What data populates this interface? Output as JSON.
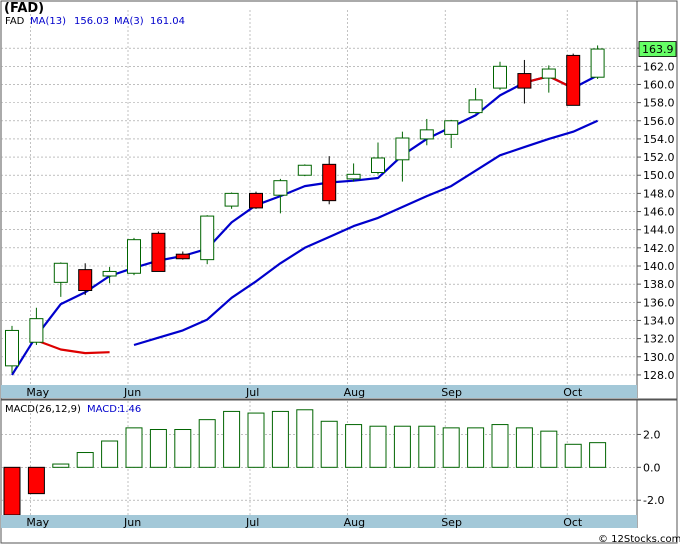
{
  "title": "(FAD)",
  "footer": "© 12Stocks.com",
  "colors": {
    "up": "#006400",
    "down": "#ff0000",
    "ma_long": "#0000cc",
    "ma_short_up": "#0000cc",
    "ma_short_down": "#dd0000",
    "axis_band": "#a3c8d8",
    "grid": "#999999",
    "price_box": "#66ff66"
  },
  "chart_data": [
    {
      "type": "candlestick",
      "name": "price",
      "legend": [
        {
          "label": "FAD",
          "value": ""
        },
        {
          "label": "MA(13)",
          "value": "156.03"
        },
        {
          "label": "MA(3)",
          "value": "161.04"
        }
      ],
      "last_price": "163.9",
      "ylim": [
        127,
        166
      ],
      "yticks": [
        128.0,
        130.0,
        132.0,
        134.0,
        136.0,
        138.0,
        140.0,
        142.0,
        144.0,
        146.0,
        148.0,
        150.0,
        152.0,
        154.0,
        156.0,
        158.0,
        160.0,
        162.0,
        164.0
      ],
      "months": [
        {
          "label": "May",
          "index": 1
        },
        {
          "label": "Jun",
          "index": 5
        },
        {
          "label": "Jul",
          "index": 10
        },
        {
          "label": "Aug",
          "index": 14
        },
        {
          "label": "Sep",
          "index": 18
        },
        {
          "label": "Oct",
          "index": 23
        }
      ],
      "candles": [
        {
          "o": 129.0,
          "h": 133.4,
          "l": 128.2,
          "c": 132.9
        },
        {
          "o": 131.6,
          "h": 135.4,
          "l": 131.3,
          "c": 134.2
        },
        {
          "o": 138.2,
          "h": 140.4,
          "l": 136.6,
          "c": 140.3
        },
        {
          "o": 139.6,
          "h": 140.3,
          "l": 136.8,
          "c": 137.3
        },
        {
          "o": 138.9,
          "h": 139.9,
          "l": 138.1,
          "c": 139.4
        },
        {
          "o": 139.2,
          "h": 143.1,
          "l": 139.0,
          "c": 142.9
        },
        {
          "o": 143.6,
          "h": 143.8,
          "l": 139.4,
          "c": 139.4
        },
        {
          "o": 141.3,
          "h": 141.6,
          "l": 140.7,
          "c": 140.8
        },
        {
          "o": 140.7,
          "h": 145.6,
          "l": 140.2,
          "c": 145.5
        },
        {
          "o": 146.6,
          "h": 148.1,
          "l": 146.3,
          "c": 148.0
        },
        {
          "o": 148.0,
          "h": 148.2,
          "l": 146.3,
          "c": 146.4
        },
        {
          "o": 147.8,
          "h": 149.6,
          "l": 145.8,
          "c": 149.4
        },
        {
          "o": 150.0,
          "h": 151.2,
          "l": 149.9,
          "c": 151.1
        },
        {
          "o": 151.2,
          "h": 152.1,
          "l": 146.8,
          "c": 147.2
        },
        {
          "o": 149.6,
          "h": 151.3,
          "l": 149.3,
          "c": 150.1
        },
        {
          "o": 150.3,
          "h": 153.6,
          "l": 150.1,
          "c": 151.9
        },
        {
          "o": 151.7,
          "h": 154.8,
          "l": 149.3,
          "c": 154.1
        },
        {
          "o": 154.0,
          "h": 156.2,
          "l": 153.3,
          "c": 155.0
        },
        {
          "o": 154.5,
          "h": 156.1,
          "l": 153.0,
          "c": 156.0
        },
        {
          "o": 156.9,
          "h": 159.6,
          "l": 156.8,
          "c": 158.3
        },
        {
          "o": 159.6,
          "h": 162.5,
          "l": 159.4,
          "c": 162.0
        },
        {
          "o": 161.2,
          "h": 162.7,
          "l": 157.9,
          "c": 159.6
        },
        {
          "o": 160.7,
          "h": 162.1,
          "l": 159.1,
          "c": 161.7
        },
        {
          "o": 163.2,
          "h": 163.4,
          "l": 157.7,
          "c": 157.7
        },
        {
          "o": 160.8,
          "h": 164.3,
          "l": 160.6,
          "c": 163.9
        }
      ],
      "ma_long": [
        null,
        null,
        null,
        null,
        null,
        131.3,
        132.1,
        132.9,
        134.1,
        136.5,
        138.3,
        140.3,
        142.0,
        143.2,
        144.4,
        145.3,
        146.5,
        147.7,
        148.8,
        150.5,
        152.2,
        153.1,
        154.0,
        154.8,
        156.0
      ],
      "ma_short": [
        128.0,
        132.3,
        135.8,
        137.1,
        138.9,
        139.8,
        140.6,
        141.1,
        141.9,
        144.8,
        146.7,
        147.7,
        148.8,
        149.2,
        149.4,
        149.7,
        152.2,
        154.0,
        155.3,
        156.6,
        158.8,
        160.2,
        160.9,
        159.6,
        161.0
      ],
      "ma_short_red_end": [
        null,
        131.8,
        130.8,
        130.4,
        130.5
      ]
    },
    {
      "type": "bar",
      "name": "macd",
      "legend": [
        {
          "label": "MACD(26,12,9)",
          "value": ""
        },
        {
          "label": "MACD:",
          "value": "1.46"
        }
      ],
      "ylim": [
        -2.9,
        3.0
      ],
      "yticks": [
        -2.0,
        0.0,
        2.0
      ],
      "ytick_labels": [
        "-2.0",
        "0.0",
        "2.0"
      ],
      "values": [
        -2.9,
        -1.6,
        0.2,
        0.9,
        1.6,
        2.4,
        2.3,
        2.3,
        2.9,
        3.4,
        3.3,
        3.4,
        3.5,
        2.8,
        2.6,
        2.5,
        2.5,
        2.5,
        2.4,
        2.4,
        2.6,
        2.4,
        2.2,
        1.4,
        1.5
      ]
    }
  ]
}
